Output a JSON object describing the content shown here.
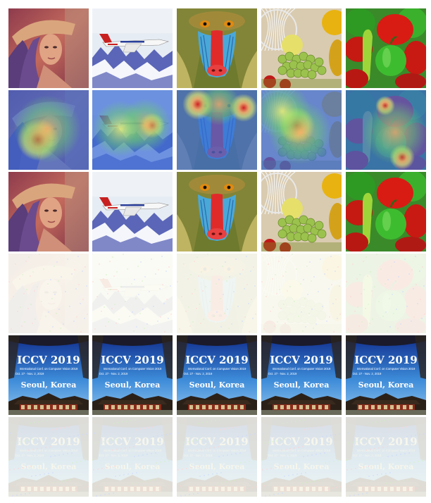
{
  "figure": {
    "rows": [
      {
        "kind": "original",
        "cells": [
          "lena",
          "jet",
          "baboon",
          "fruits",
          "peppers"
        ]
      },
      {
        "kind": "heatmap",
        "cells": [
          "lena",
          "jet",
          "baboon",
          "fruits",
          "peppers"
        ]
      },
      {
        "kind": "adversarial",
        "cells": [
          "lena",
          "jet",
          "baboon",
          "fruits",
          "peppers"
        ]
      },
      {
        "kind": "perturbation",
        "cells": [
          "lena",
          "jet",
          "baboon",
          "fruits",
          "peppers"
        ]
      },
      {
        "kind": "poster",
        "cells": [
          "iccv",
          "iccv",
          "iccv",
          "iccv",
          "iccv"
        ]
      },
      {
        "kind": "poster-perturbation",
        "cells": [
          "iccv",
          "iccv",
          "iccv",
          "iccv",
          "iccv"
        ]
      }
    ],
    "poster": {
      "title": "ICCV 2019",
      "subtitle": "International Conf. on Computer Vision 2019",
      "dates": "Oct. 27 - Nov. 2, 2019",
      "city": "Seoul, Korea"
    },
    "colors": {
      "heat_hot": "#d7191c",
      "heat_warm": "#fdae61",
      "heat_mid": "#ffff66",
      "heat_cool": "#3a6bd6",
      "heat_cold": "#1a2b9b",
      "residual_bg": "#fbfbf4",
      "residual_line": "#d9d6b0"
    }
  }
}
